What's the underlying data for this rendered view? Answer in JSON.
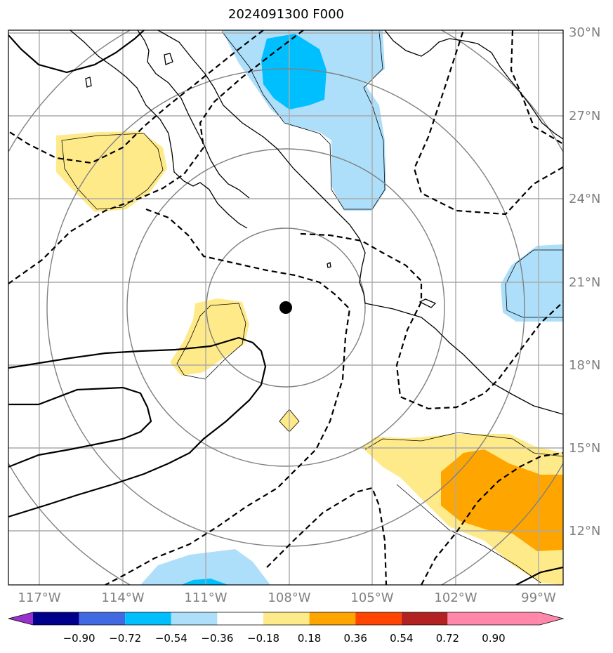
{
  "title": "2024091300 F000",
  "lat_labels": [
    "30°N",
    "27°N",
    "24°N",
    "21°N",
    "18°N",
    "15°N",
    "12°N"
  ],
  "lon_labels": [
    "117°W",
    "114°W",
    "111°W",
    "108°W",
    "105°W",
    "102°W",
    "99°W"
  ],
  "colorbar": {
    "colors": [
      "#9932CC",
      "#00008B",
      "#4169E1",
      "#00BFFF",
      "#ADDFFA",
      "#FFFFFF",
      "#FFEA8A",
      "#FFA500",
      "#FF4500",
      "#B22222",
      "#FF88AA"
    ],
    "labels": [
      "−0.90",
      "−0.72",
      "−0.54",
      "−0.36",
      "−0.18",
      "0.18",
      "0.36",
      "0.54",
      "0.72",
      "0.90"
    ]
  },
  "colors": {
    "grid": "#aaaaaa",
    "range_rings": "#808080",
    "coast": "#000000",
    "contour": "#000000",
    "fill_light_blue": "#ADDFFA",
    "fill_blue": "#00BFFF",
    "fill_yellow": "#FFEA8A",
    "fill_orange": "#FFA500"
  }
}
